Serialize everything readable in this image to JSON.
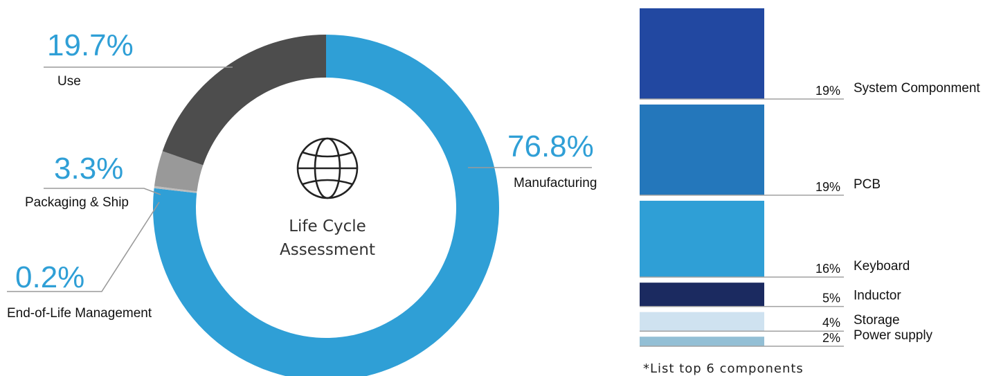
{
  "center_title": [
    "Life Cycle",
    "Assessment"
  ],
  "note": "*List top 6 components",
  "chart_data": [
    {
      "type": "pie",
      "variant": "donut",
      "slices": [
        {
          "label": "Manufacturing",
          "value": 76.8,
          "display": "76.8%",
          "color": "#2f9fd6"
        },
        {
          "label": "End-of-Life Management",
          "value": 0.2,
          "display": "0.2%",
          "color": "#bdbdbd"
        },
        {
          "label": "Packaging & Ship",
          "value": 3.3,
          "display": "3.3%",
          "color": "#999999"
        },
        {
          "label": "Use",
          "value": 19.7,
          "display": "19.7%",
          "color": "#4d4d4d"
        }
      ]
    },
    {
      "type": "bar",
      "orientation": "stacked-column",
      "categories": [
        "System Componment",
        "PCB",
        "Keyboard",
        "Inductor",
        "Storage",
        "Power supply"
      ],
      "values": [
        19,
        19,
        16,
        5,
        4,
        2
      ],
      "display": [
        "19%",
        "19%",
        "16%",
        "5%",
        "4%",
        "2%"
      ],
      "colors": [
        "#2248a1",
        "#2477bb",
        "#2f9fd6",
        "#1b2a60",
        "#cfe2f0",
        "#93bfd5"
      ]
    }
  ]
}
